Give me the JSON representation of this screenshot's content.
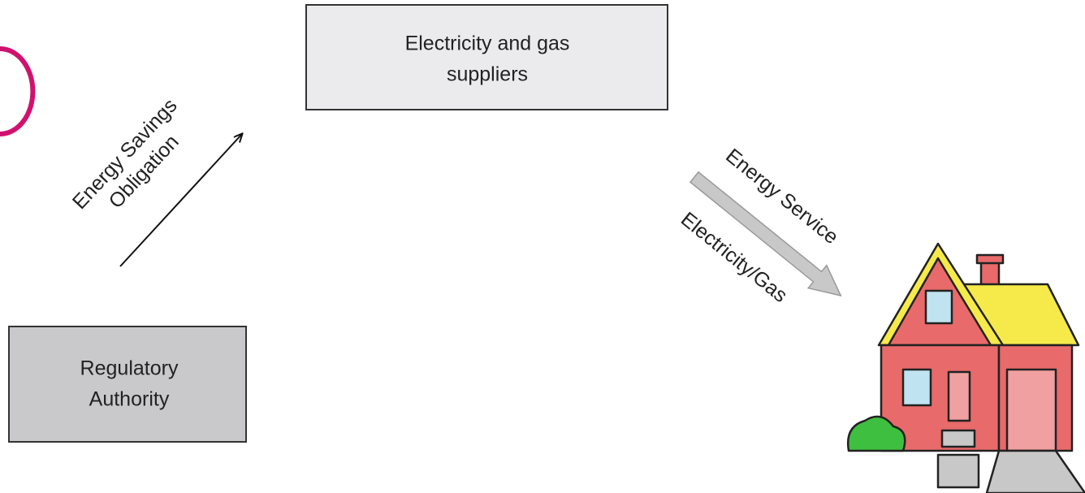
{
  "nodes": [
    {
      "label": [
        "Electricity and gas",
        "suppliers"
      ]
    },
    {
      "label": [
        "Regulatory",
        "Authority"
      ]
    }
  ],
  "edges": [
    {
      "labels": [
        "Energy Savings",
        "Obligation"
      ]
    },
    {
      "labels": [
        "Energy Service",
        "Electricity/Gas"
      ]
    }
  ]
}
